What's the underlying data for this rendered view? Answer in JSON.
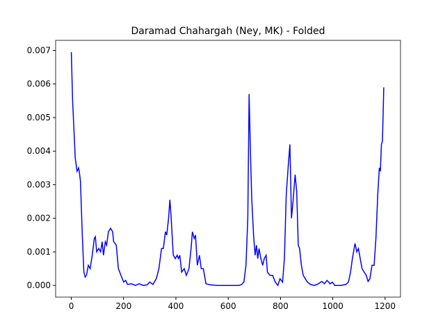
{
  "chart_data": {
    "type": "line",
    "title": "Daramad Chahargah (Ney, MK) - Folded",
    "x": [
      0,
      5,
      15,
      22,
      28,
      32,
      35,
      42,
      48,
      53,
      58,
      65,
      72,
      80,
      88,
      92,
      97,
      105,
      112,
      118,
      123,
      130,
      135,
      142,
      150,
      158,
      162,
      172,
      180,
      190,
      200,
      208,
      215,
      230,
      245,
      260,
      275,
      290,
      300,
      312,
      325,
      335,
      345,
      352,
      360,
      365,
      372,
      377,
      382,
      390,
      398,
      405,
      410,
      415,
      422,
      432,
      440,
      450,
      458,
      463,
      470,
      475,
      482,
      490,
      497,
      505,
      515,
      530,
      560,
      620,
      640,
      650,
      660,
      668,
      675,
      680,
      685,
      690,
      697,
      703,
      708,
      713,
      718,
      725,
      732,
      738,
      745,
      750,
      760,
      770,
      780,
      790,
      798,
      808,
      815,
      822,
      830,
      836,
      842,
      848,
      856,
      862,
      868,
      873,
      880,
      887,
      895,
      903,
      915,
      930,
      945,
      958,
      968,
      978,
      990,
      998,
      1008,
      1030,
      1050,
      1060,
      1068,
      1075,
      1085,
      1092,
      1098,
      1105,
      1112,
      1120,
      1128,
      1135,
      1142,
      1150,
      1158,
      1165,
      1172,
      1178,
      1182,
      1186,
      1190,
      1195
    ],
    "series": [
      {
        "color": "#0000ff",
        "values": [
          0.00695,
          0.0055,
          0.0038,
          0.0034,
          0.0035,
          0.0033,
          0.0031,
          0.0015,
          0.0004,
          0.00025,
          0.0003,
          0.0006,
          0.0005,
          0.0009,
          0.0014,
          0.00145,
          0.001,
          0.0011,
          0.001,
          0.0013,
          0.0009,
          0.0013,
          0.0012,
          0.0016,
          0.0017,
          0.0016,
          0.0013,
          0.0012,
          0.0005,
          0.0003,
          0.0001,
          0.00015,
          3e-05,
          5e-05,
          0.0,
          5e-05,
          0.0,
          2e-05,
          0.0001,
          3e-05,
          0.0002,
          0.0005,
          0.0011,
          0.0011,
          0.0016,
          0.0015,
          0.002,
          0.00255,
          0.002,
          0.0009,
          0.0008,
          0.0009,
          0.0008,
          0.0009,
          0.0004,
          0.0005,
          0.0003,
          0.0005,
          0.0011,
          0.0016,
          0.0014,
          0.0015,
          0.0006,
          0.0009,
          0.0005,
          0.0005,
          5e-05,
          2e-05,
          0.0,
          0.0,
          0.0,
          2e-05,
          0.0001,
          0.0006,
          0.002,
          0.0057,
          0.004,
          0.0026,
          0.0015,
          0.0009,
          0.0012,
          0.0008,
          0.0011,
          0.0008,
          0.0006,
          0.0008,
          0.0009,
          0.0004,
          0.0003,
          0.0003,
          0.0001,
          0.0,
          0.0002,
          0.0001,
          0.0008,
          0.0027,
          0.0036,
          0.0042,
          0.002,
          0.0025,
          0.0033,
          0.0028,
          0.0012,
          0.0011,
          0.0006,
          0.0003,
          0.0002,
          0.0001,
          3e-05,
          0.0,
          5e-05,
          0.00012,
          5e-05,
          0.00015,
          5e-05,
          0.0001,
          0.0,
          0.0,
          3e-05,
          0.0001,
          0.0004,
          0.0008,
          0.00125,
          0.001,
          0.0011,
          0.0008,
          0.0005,
          0.0004,
          0.0003,
          0.00012,
          0.0002,
          0.0006,
          0.0006,
          0.0014,
          0.0027,
          0.0035,
          0.0034,
          0.0042,
          0.0043,
          0.0059
        ]
      }
    ],
    "xlim": [
      -60,
      1259
    ],
    "ylim": [
      -0.000348,
      0.0073
    ],
    "xticks": [
      0,
      200,
      400,
      600,
      800,
      1000,
      1200
    ],
    "yticks": [
      {
        "value": 0,
        "label": "0.000"
      },
      {
        "value": 0.001,
        "label": "0.001"
      },
      {
        "value": 0.002,
        "label": "0.002"
      },
      {
        "value": 0.003,
        "label": "0.003"
      },
      {
        "value": 0.004,
        "label": "0.004"
      },
      {
        "value": 0.005,
        "label": "0.005"
      },
      {
        "value": 0.006,
        "label": "0.006"
      },
      {
        "value": 0.007,
        "label": "0.007"
      }
    ]
  }
}
